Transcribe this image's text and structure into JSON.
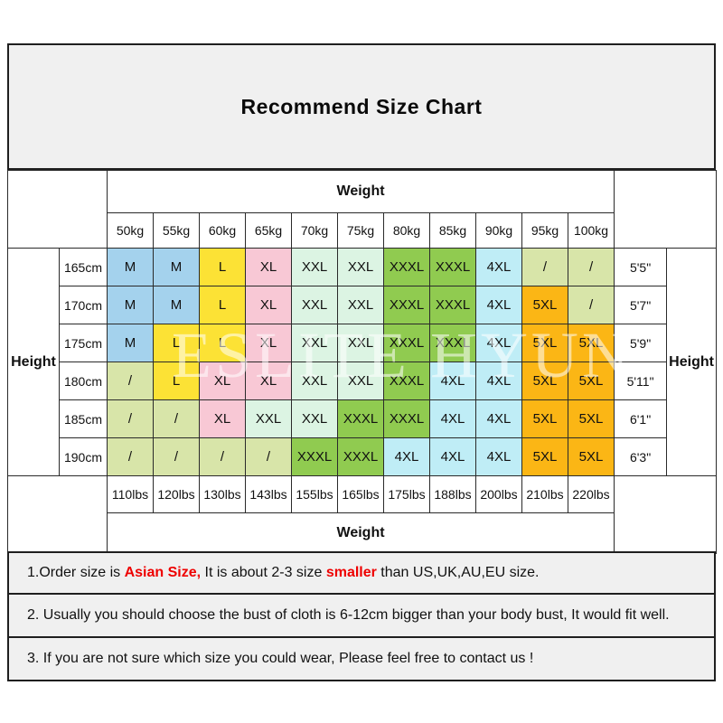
{
  "page": {
    "title": "Recommend Size Chart"
  },
  "chart_data": {
    "type": "table",
    "title": "Recommend Size Chart",
    "weight_header": "Weight",
    "height_header": "Height",
    "columns_kg": [
      "50kg",
      "55kg",
      "60kg",
      "65kg",
      "70kg",
      "75kg",
      "80kg",
      "85kg",
      "90kg",
      "95kg",
      "100kg"
    ],
    "columns_lbs": [
      "110lbs",
      "120lbs",
      "130lbs",
      "143lbs",
      "155lbs",
      "165lbs",
      "175lbs",
      "188lbs",
      "200lbs",
      "210lbs",
      "220lbs"
    ],
    "rows": [
      {
        "height_cm": "165cm",
        "height_ft": "5'5\"",
        "sizes": [
          "M",
          "M",
          "L",
          "XL",
          "XXL",
          "XXL",
          "XXXL",
          "XXXL",
          "4XL",
          "/",
          "/"
        ]
      },
      {
        "height_cm": "170cm",
        "height_ft": "5'7\"",
        "sizes": [
          "M",
          "M",
          "L",
          "XL",
          "XXL",
          "XXL",
          "XXXL",
          "XXXL",
          "4XL",
          "5XL",
          "/"
        ]
      },
      {
        "height_cm": "175cm",
        "height_ft": "5'9\"",
        "sizes": [
          "M",
          "L",
          "L",
          "XL",
          "XXL",
          "XXL",
          "XXXL",
          "XXXL",
          "4XL",
          "5XL",
          "5XL"
        ]
      },
      {
        "height_cm": "180cm",
        "height_ft": "5'11\"",
        "sizes": [
          "/",
          "L",
          "XL",
          "XL",
          "XXL",
          "XXL",
          "XXXL",
          "4XL",
          "4XL",
          "5XL",
          "5XL"
        ]
      },
      {
        "height_cm": "185cm",
        "height_ft": "6'1\"",
        "sizes": [
          "/",
          "/",
          "XL",
          "XXL",
          "XXL",
          "XXXL",
          "XXXL",
          "4XL",
          "4XL",
          "5XL",
          "5XL"
        ]
      },
      {
        "height_cm": "190cm",
        "height_ft": "6'3\"",
        "sizes": [
          "/",
          "/",
          "/",
          "/",
          "XXXL",
          "XXXL",
          "4XL",
          "4XL",
          "4XL",
          "5XL",
          "5XL"
        ]
      }
    ]
  },
  "size_colors": {
    "M": "#A4D2ED",
    "L": "#FCE235",
    "XL": "#F8C8D5",
    "XXL": "#DCF4E3",
    "XXXL": "#90CB50",
    "4XL": "#BFEDF6",
    "5XL": "#FBB615",
    "/": "#D8E5A9"
  },
  "colors": {
    "box_background": "#F0F0F0",
    "table_border": "#2a2a2a",
    "note_red": "#EE0000"
  },
  "watermark": "ESLITE HYUN",
  "notes": [
    {
      "segments": [
        {
          "text": "1.Order size is ",
          "red": false
        },
        {
          "text": "Asian Size,",
          "red": true
        },
        {
          "text": " It is about 2-3 size ",
          "red": false
        },
        {
          "text": "smaller",
          "red": true
        },
        {
          "text": " than US,UK,AU,EU size.",
          "red": false
        }
      ]
    },
    {
      "segments": [
        {
          "text": "2. Usually you should choose the bust of cloth is 6-12cm bigger than your body bust, It would fit well.",
          "red": false
        }
      ]
    },
    {
      "segments": [
        {
          "text": "3. If you are not sure which size you could wear, Please feel free to contact us !",
          "red": false
        }
      ]
    }
  ]
}
